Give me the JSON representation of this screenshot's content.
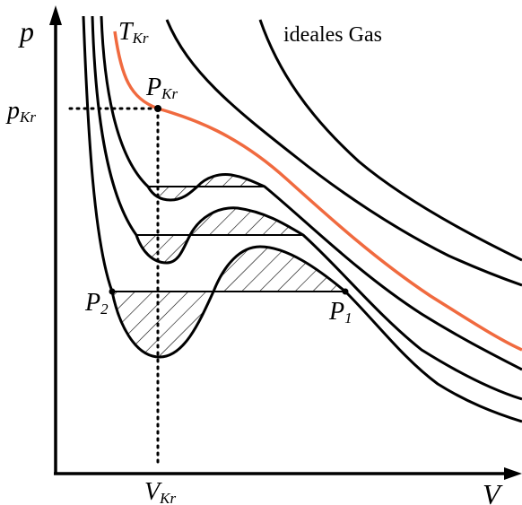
{
  "diagram": {
    "axes": {
      "y_label": "p",
      "x_label": "V"
    },
    "labels": {
      "critical_temperature": {
        "main": "T",
        "sub": "Kr"
      },
      "ideal_gas": "ideales Gas",
      "critical_point": {
        "main": "P",
        "sub": "Kr"
      },
      "critical_pressure": {
        "main": "p",
        "sub": "Kr"
      },
      "critical_volume": {
        "main": "V",
        "sub": "Kr"
      },
      "point_1": {
        "main": "P",
        "sub": "1"
      },
      "point_2": {
        "main": "P",
        "sub": "2"
      }
    },
    "colors": {
      "critical_isotherm": "#f06a3f",
      "isotherm": "#000000",
      "axis": "#000000"
    }
  }
}
